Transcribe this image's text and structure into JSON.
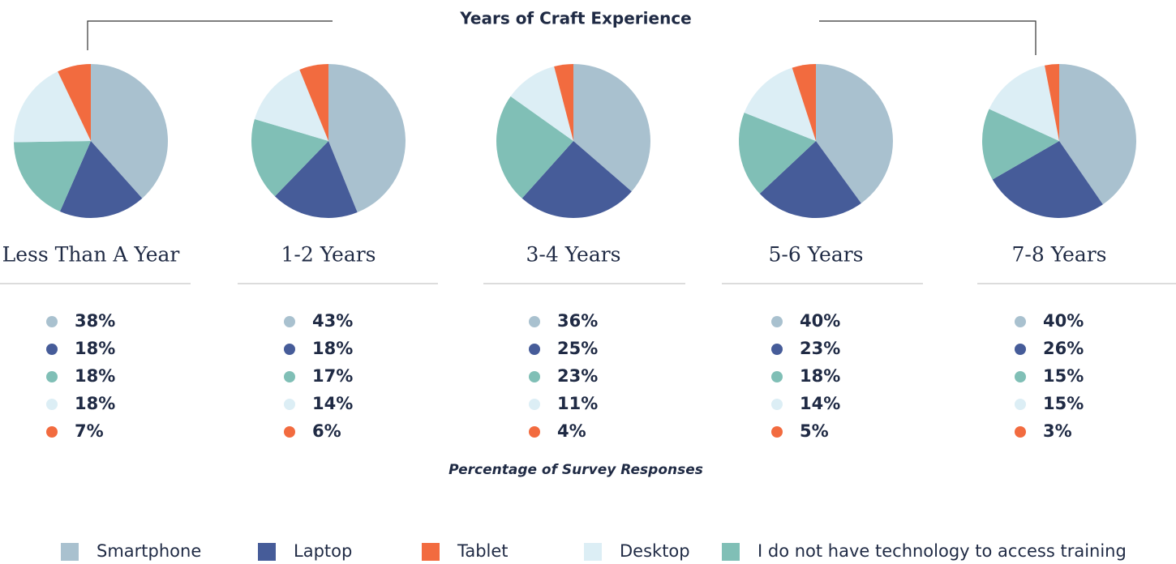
{
  "title": "Years of Craft Experience",
  "subtitle": "Percentage of Survey Responses",
  "legend": [
    {
      "name": "Smartphone",
      "color": "#a9c1cf"
    },
    {
      "name": "Laptop",
      "color": "#465c99"
    },
    {
      "name": "Tablet",
      "color": "#f26b3f"
    },
    {
      "name": "Desktop",
      "color": "#dceef5"
    },
    {
      "name": "I do not have technology to access training",
      "color": "#80bfb6"
    }
  ],
  "chart_data": [
    {
      "type": "pie",
      "title": "Less Than A Year",
      "values": [
        38,
        18,
        18,
        18,
        7
      ],
      "value_labels": [
        "38%",
        "18%",
        "18%",
        "18%",
        "7%"
      ],
      "colors": [
        "#a9c1cf",
        "#465c99",
        "#80bfb6",
        "#dceef5",
        "#f26b3f"
      ]
    },
    {
      "type": "pie",
      "title": "1-2 Years",
      "values": [
        43,
        18,
        17,
        14,
        6
      ],
      "value_labels": [
        "43%",
        "18%",
        "17%",
        "14%",
        "6%"
      ],
      "colors": [
        "#a9c1cf",
        "#465c99",
        "#80bfb6",
        "#dceef5",
        "#f26b3f"
      ]
    },
    {
      "type": "pie",
      "title": "3-4 Years",
      "values": [
        36,
        25,
        23,
        11,
        4
      ],
      "value_labels": [
        "36%",
        "25%",
        "23%",
        "11%",
        "4%"
      ],
      "colors": [
        "#a9c1cf",
        "#465c99",
        "#80bfb6",
        "#dceef5",
        "#f26b3f"
      ]
    },
    {
      "type": "pie",
      "title": "5-6 Years",
      "values": [
        40,
        23,
        18,
        14,
        5
      ],
      "value_labels": [
        "40%",
        "23%",
        "18%",
        "14%",
        "5%"
      ],
      "colors": [
        "#a9c1cf",
        "#465c99",
        "#80bfb6",
        "#dceef5",
        "#f26b3f"
      ]
    },
    {
      "type": "pie",
      "title": "7-8 Years",
      "values": [
        40,
        26,
        15,
        15,
        3
      ],
      "value_labels": [
        "40%",
        "26%",
        "15%",
        "15%",
        "3%"
      ],
      "colors": [
        "#a9c1cf",
        "#465c99",
        "#80bfb6",
        "#dceef5",
        "#f26b3f"
      ]
    }
  ]
}
